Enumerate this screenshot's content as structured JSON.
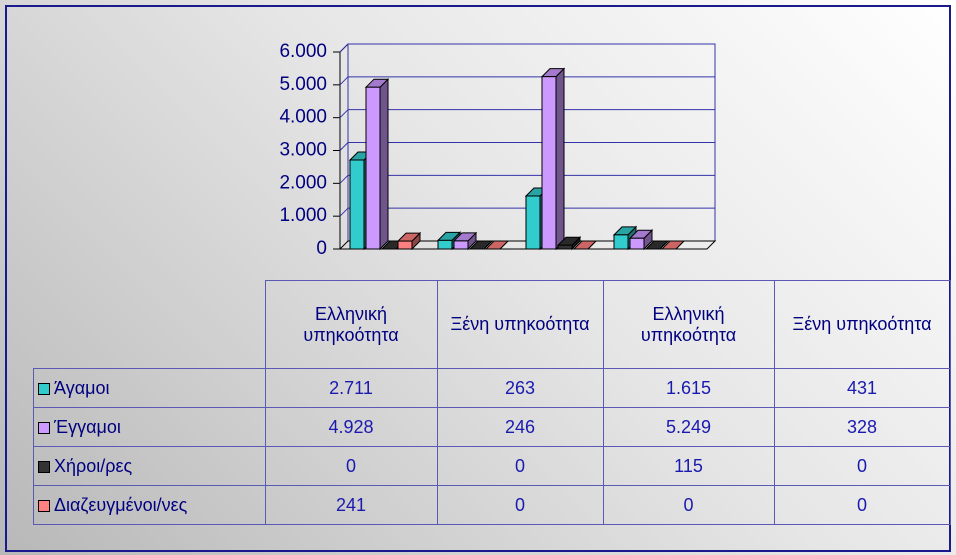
{
  "chart_data": {
    "type": "bar3d",
    "categories": [
      "Ελληνική υπηκοότητα",
      "Ξένη υπηκοότητα",
      "Ελληνική υπηκοότητα",
      "Ξένη υπηκοότητα"
    ],
    "series": [
      {
        "name": "Άγαμοι",
        "color": "#33cccc",
        "values": [
          2711,
          263,
          1615,
          431
        ],
        "value_labels": [
          "2.711",
          "263",
          "1.615",
          "431"
        ]
      },
      {
        "name": "Έγγαμοι",
        "color": "#cc99ff",
        "values": [
          4928,
          246,
          5249,
          328
        ],
        "value_labels": [
          "4.928",
          "246",
          "5.249",
          "328"
        ]
      },
      {
        "name": "Χήροι/ρες",
        "color": "#333333",
        "values": [
          0,
          0,
          115,
          0
        ],
        "value_labels": [
          "0",
          "0",
          "115",
          "0"
        ]
      },
      {
        "name": "Διαζευγμένοι/νες",
        "color": "#ff8080",
        "values": [
          241,
          0,
          0,
          0
        ],
        "value_labels": [
          "241",
          "0",
          "0",
          "0"
        ]
      }
    ],
    "ylim": [
      0,
      6000
    ],
    "yticks": [
      0,
      {
        "value": 1000,
        "label": "1.000"
      },
      {
        "value": 2000,
        "label": "2.000"
      },
      {
        "value": 3000,
        "label": "3.000"
      },
      {
        "value": 4000,
        "label": "4.000"
      },
      {
        "value": 5000,
        "label": "5.000"
      },
      {
        "value": 6000,
        "label": "6.000"
      }
    ],
    "grid": true
  }
}
